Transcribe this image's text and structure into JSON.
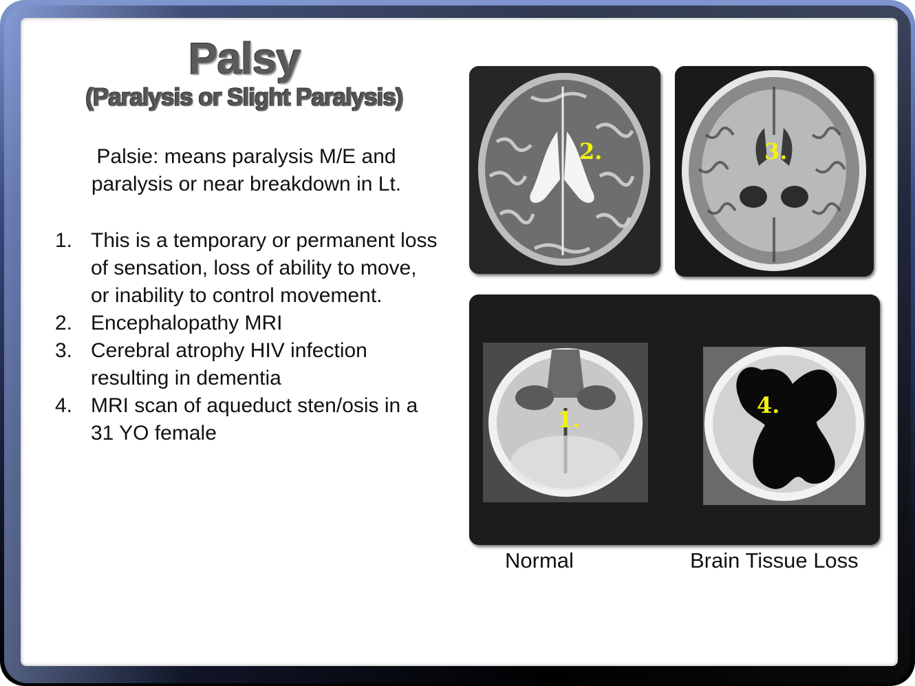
{
  "slide": {
    "title": "Palsy",
    "subtitle": "(Paralysis or Slight Paralysis)",
    "intro": "Palsie: means paralysis M/E and paralysis or near breakdown in Lt.",
    "items": [
      {
        "num": "1.",
        "text": "This is a temporary or permanent loss of sensation, loss of ability to move, or inability to control movement."
      },
      {
        "num": "2.",
        "text": "Encephalopathy MRI"
      },
      {
        "num": "3.",
        "text": "Cerebral atrophy HIV infection resulting in dementia"
      },
      {
        "num": "4.",
        "text": "MRI scan of aqueduct sten/osis in a 31 YO female"
      }
    ]
  },
  "images": {
    "mri_2_label": "2.",
    "mri_3_label": "3.",
    "mri_1_label": "1.",
    "mri_4_label": "4."
  },
  "captions": {
    "normal": "Normal",
    "loss": "Brain Tissue Loss"
  },
  "colors": {
    "label_yellow": "#f2f20a",
    "frame_blue": "#7f96cf"
  }
}
